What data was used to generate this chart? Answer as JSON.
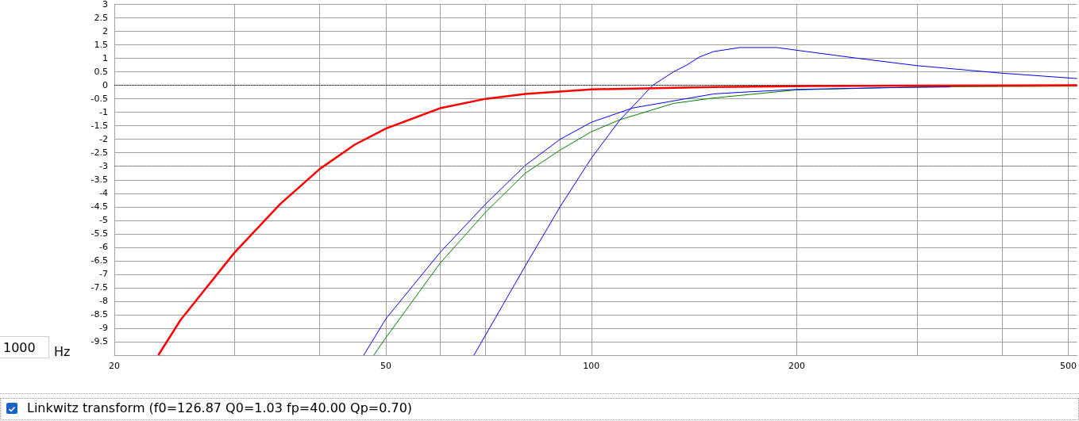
{
  "chart_data": {
    "type": "line",
    "log": "x",
    "grid": true,
    "xlim": [
      20,
      515
    ],
    "ylim": [
      -10,
      3
    ],
    "xticks": [
      {
        "value": 20,
        "label": "20"
      },
      {
        "value": 30,
        "label": null
      },
      {
        "value": 40,
        "label": null
      },
      {
        "value": 50,
        "label": "50"
      },
      {
        "value": 60,
        "label": null
      },
      {
        "value": 70,
        "label": null
      },
      {
        "value": 80,
        "label": null
      },
      {
        "value": 90,
        "label": null
      },
      {
        "value": 100,
        "label": "100"
      },
      {
        "value": 200,
        "label": "200"
      },
      {
        "value": 300,
        "label": null
      },
      {
        "value": 400,
        "label": null
      },
      {
        "value": 500,
        "label": "500"
      }
    ],
    "yticks": [
      {
        "value": -10,
        "label": null
      },
      -9.5,
      -9,
      -8.5,
      -8,
      -7.5,
      -7,
      -6.5,
      -6,
      -5.5,
      -5,
      -4.5,
      -4,
      -3.5,
      -3,
      -2.5,
      -2,
      -1.5,
      -1,
      -0.5,
      0,
      0.5,
      1,
      1.5,
      2,
      2.5,
      3
    ],
    "ref_lines": [
      {
        "axis": "y",
        "value": 0,
        "color": "#000000",
        "line_style": "dotted"
      },
      {
        "axis": "y",
        "value": -3,
        "color": "#808080",
        "line_style": "dashed"
      }
    ],
    "series": [
      {
        "color": "#ff0000",
        "x": [
          23.2,
          25,
          30,
          35,
          40,
          45,
          50,
          60,
          70,
          80,
          100,
          151,
          200,
          300,
          515
        ],
        "values": [
          -10,
          -8.7,
          -6.2,
          -4.4,
          -3.1,
          -2.2,
          -1.6,
          -0.85,
          -0.5,
          -0.32,
          -0.15,
          -0.06,
          -0.03,
          -0.01,
          0
        ]
      },
      {
        "color": "#0000ff",
        "x": [
          67.3,
          80,
          90,
          100,
          110,
          123,
          132,
          138,
          144,
          151,
          165,
          187,
          200,
          246,
          300,
          400,
          503,
          515
        ],
        "values": [
          -10,
          -6.7,
          -4.5,
          -2.7,
          -1.3,
          0,
          0.5,
          0.75,
          1.05,
          1.25,
          1.4,
          1.4,
          1.3,
          1.0,
          0.73,
          0.45,
          0.27,
          0.25
        ]
      },
      {
        "color": "#0000ff",
        "x": [
          46.4,
          50,
          60,
          70,
          80,
          90,
          100,
          115,
          151,
          165,
          200,
          267,
          336
        ],
        "values": [
          -10,
          -8.65,
          -6.2,
          -4.4,
          -2.97,
          -2.0,
          -1.37,
          -0.84,
          -0.32,
          -0.26,
          -0.15,
          -0.09,
          -0.06
        ]
      },
      {
        "color": "#008000",
        "x": [
          48,
          50,
          60,
          70,
          80,
          90,
          100,
          110,
          132,
          151,
          200,
          300,
          515
        ],
        "values": [
          -10,
          -9.35,
          -6.6,
          -4.7,
          -3.26,
          -2.4,
          -1.72,
          -1.28,
          -0.67,
          -0.47,
          -0.17,
          -0.06,
          -0.03
        ]
      }
    ],
    "annotations": [
      "1000",
      "Hz",
      "Linkwitz transform (f0=126.87 Q0=1.03 fp=40.00 Qp=0.70)"
    ]
  }
}
